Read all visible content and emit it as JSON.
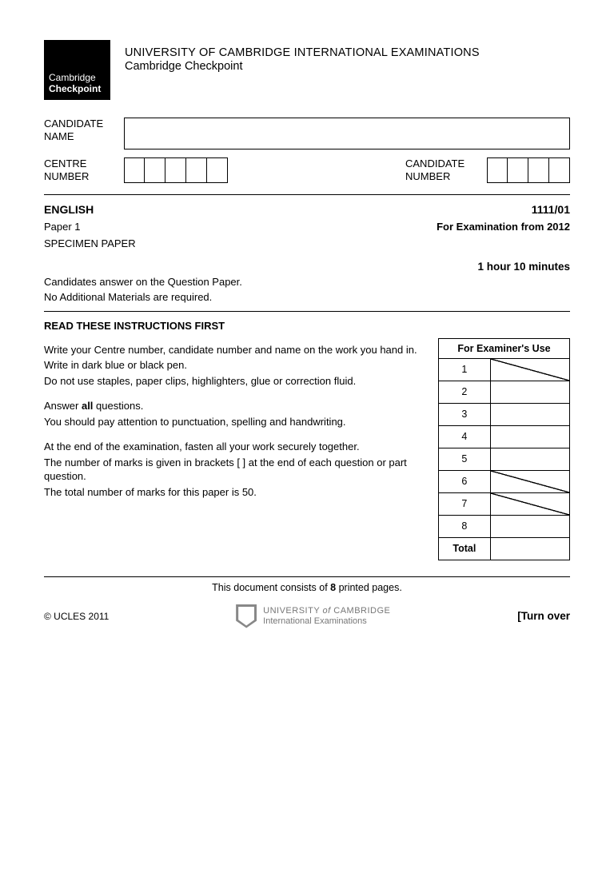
{
  "logo": {
    "line1": "Cambridge",
    "line2": "Checkpoint"
  },
  "header": {
    "title": "UNIVERSITY OF CAMBRIDGE INTERNATIONAL EXAMINATIONS",
    "subtitle": "Cambridge Checkpoint"
  },
  "candidate": {
    "name_label": "CANDIDATE NAME",
    "centre_label": "CENTRE NUMBER",
    "candnum_label": "CANDIDATE NUMBER",
    "centre_boxes": 5,
    "candnum_boxes": 4
  },
  "subject": {
    "name": "ENGLISH",
    "code": "1111/01",
    "paper": "Paper 1",
    "exam_from": "For Examination from 2012",
    "specimen": "SPECIMEN PAPER",
    "duration": "1 hour 10 minutes",
    "qp_line1": "Candidates answer on the Question Paper.",
    "qp_line2": "No Additional Materials are required."
  },
  "instructions": {
    "title": "READ THESE INSTRUCTIONS FIRST",
    "block1": [
      "Write your Centre number, candidate number and name on the work you hand in.",
      "Write in dark blue or black pen.",
      "Do not use staples, paper clips, highlighters, glue or correction fluid."
    ],
    "block2_pre": "Answer ",
    "block2_bold": "all",
    "block2_post": " questions.",
    "block2_line2": "You should pay attention to punctuation, spelling and handwriting.",
    "block3": [
      "At the end of the examination, fasten all your work securely together.",
      "The number of marks is given in brackets [  ] at the end of each question or part question.",
      "The total number of marks for this paper is 50."
    ]
  },
  "examiner": {
    "header": "For Examiner's Use",
    "rows": [
      {
        "n": "1",
        "diag": true
      },
      {
        "n": "2",
        "diag": false
      },
      {
        "n": "3",
        "diag": false
      },
      {
        "n": "4",
        "diag": false
      },
      {
        "n": "5",
        "diag": false
      },
      {
        "n": "6",
        "diag": true
      },
      {
        "n": "7",
        "diag": true
      },
      {
        "n": "8",
        "diag": false
      }
    ],
    "total_label": "Total"
  },
  "footer": {
    "doc_pre": "This document consists of ",
    "doc_bold": "8",
    "doc_post": " printed pages.",
    "copyright": "© UCLES 2011",
    "uni1_a": "UNIVERSITY ",
    "uni1_of": "of ",
    "uni1_b": "CAMBRIDGE",
    "uni2": "International Examinations",
    "turn": "[Turn over"
  }
}
